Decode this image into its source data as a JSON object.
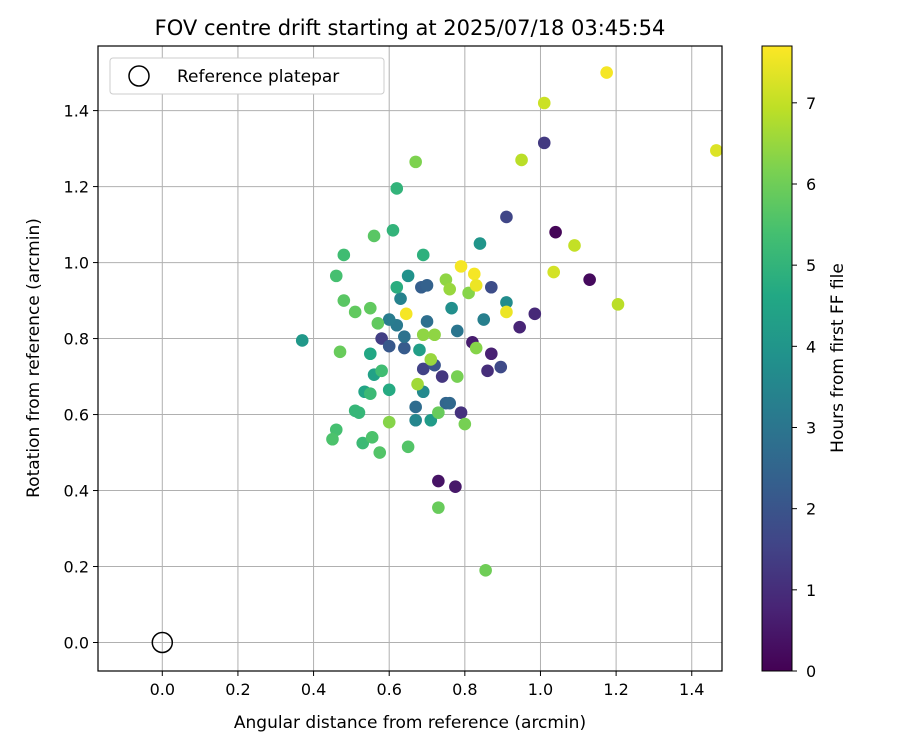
{
  "chart_data": {
    "type": "scatter",
    "title": "FOV centre drift starting at 2025/07/18 03:45:54",
    "xlabel": "Angular distance from reference (arcmin)",
    "ylabel": "Rotation from reference (arcmin)",
    "xlim": [
      -0.17,
      1.48
    ],
    "ylim": [
      -0.075,
      1.57
    ],
    "xticks": [
      "0.0",
      "0.2",
      "0.4",
      "0.6",
      "0.8",
      "1.0",
      "1.2",
      "1.4"
    ],
    "yticks": [
      "0.0",
      "0.2",
      "0.4",
      "0.6",
      "0.8",
      "1.0",
      "1.2",
      "1.4"
    ],
    "grid": true,
    "legend": {
      "placement": "top-left",
      "entries": [
        "Reference platepar"
      ]
    },
    "reference_point": {
      "x": 0.0,
      "y": 0.0
    },
    "colorbar": {
      "label": "Hours from first FF file",
      "range": [
        0,
        7.7
      ],
      "ticks": [
        "0",
        "1",
        "2",
        "3",
        "4",
        "5",
        "6",
        "7"
      ],
      "colormap": "viridis"
    },
    "series": [
      {
        "points": [
          [
            1.04,
            1.08,
            0.1
          ],
          [
            1.13,
            0.955,
            0.2
          ],
          [
            0.73,
            0.425,
            0.4
          ],
          [
            0.775,
            0.41,
            0.5
          ],
          [
            0.82,
            0.79,
            0.6
          ],
          [
            0.87,
            0.76,
            0.7
          ],
          [
            0.945,
            0.83,
            0.8
          ],
          [
            0.985,
            0.865,
            0.9
          ],
          [
            0.86,
            0.715,
            1.0
          ],
          [
            0.79,
            0.605,
            1.1
          ],
          [
            0.74,
            0.7,
            1.2
          ],
          [
            1.01,
            1.315,
            1.3
          ],
          [
            0.58,
            0.8,
            1.4
          ],
          [
            0.69,
            0.72,
            1.5
          ],
          [
            0.91,
            1.12,
            1.6
          ],
          [
            0.895,
            0.725,
            1.7
          ],
          [
            0.87,
            0.935,
            1.8
          ],
          [
            0.72,
            0.73,
            2.0
          ],
          [
            0.6,
            0.78,
            2.1
          ],
          [
            0.64,
            0.775,
            2.2
          ],
          [
            0.685,
            0.935,
            2.3
          ],
          [
            0.7,
            0.94,
            2.4
          ],
          [
            0.75,
            0.63,
            2.5
          ],
          [
            0.76,
            0.63,
            2.6
          ],
          [
            0.67,
            0.62,
            2.7
          ],
          [
            0.7,
            0.845,
            2.8
          ],
          [
            0.64,
            0.805,
            2.9
          ],
          [
            0.78,
            0.82,
            3.0
          ],
          [
            0.62,
            0.835,
            3.1
          ],
          [
            0.6,
            0.85,
            3.2
          ],
          [
            0.85,
            0.85,
            3.3
          ],
          [
            0.63,
            0.905,
            3.4
          ],
          [
            0.67,
            0.585,
            3.5
          ],
          [
            0.69,
            0.66,
            3.6
          ],
          [
            0.91,
            0.895,
            3.7
          ],
          [
            0.765,
            0.88,
            3.8
          ],
          [
            0.65,
            0.965,
            3.9
          ],
          [
            0.84,
            1.05,
            4.0
          ],
          [
            0.37,
            0.795,
            4.1
          ],
          [
            0.71,
            0.585,
            4.2
          ],
          [
            0.68,
            0.77,
            4.3
          ],
          [
            0.56,
            0.705,
            4.4
          ],
          [
            0.535,
            0.66,
            4.5
          ],
          [
            0.55,
            0.76,
            4.6
          ],
          [
            0.6,
            0.665,
            4.7
          ],
          [
            0.62,
            0.935,
            4.8
          ],
          [
            0.69,
            1.02,
            4.9
          ],
          [
            0.61,
            1.085,
            5.0
          ],
          [
            0.62,
            1.195,
            5.0
          ],
          [
            0.51,
            0.61,
            5.1
          ],
          [
            0.52,
            0.605,
            5.1
          ],
          [
            0.53,
            0.525,
            5.2
          ],
          [
            0.55,
            0.655,
            5.2
          ],
          [
            0.58,
            0.715,
            5.3
          ],
          [
            0.48,
            1.02,
            5.3
          ],
          [
            0.46,
            0.965,
            5.4
          ],
          [
            0.46,
            0.56,
            5.4
          ],
          [
            0.45,
            0.535,
            5.5
          ],
          [
            0.555,
            0.54,
            5.5
          ],
          [
            0.575,
            0.5,
            5.6
          ],
          [
            0.65,
            0.515,
            5.6
          ],
          [
            0.56,
            1.07,
            5.7
          ],
          [
            0.48,
            0.9,
            5.7
          ],
          [
            0.51,
            0.87,
            5.8
          ],
          [
            0.55,
            0.88,
            5.8
          ],
          [
            0.57,
            0.84,
            5.8
          ],
          [
            0.47,
            0.765,
            5.9
          ],
          [
            0.73,
            0.605,
            5.9
          ],
          [
            0.73,
            0.355,
            5.9
          ],
          [
            0.855,
            0.19,
            6.0
          ],
          [
            0.8,
            0.575,
            6.1
          ],
          [
            0.78,
            0.7,
            6.1
          ],
          [
            0.67,
            1.265,
            6.2
          ],
          [
            0.6,
            0.58,
            6.3
          ],
          [
            0.81,
            0.92,
            6.3
          ],
          [
            0.83,
            0.775,
            6.3
          ],
          [
            0.72,
            0.81,
            6.4
          ],
          [
            0.69,
            0.81,
            6.4
          ],
          [
            0.75,
            0.955,
            6.4
          ],
          [
            0.71,
            0.745,
            6.5
          ],
          [
            0.76,
            0.93,
            6.5
          ],
          [
            0.675,
            0.68,
            6.6
          ],
          [
            0.95,
            1.27,
            6.9
          ],
          [
            1.205,
            0.89,
            6.9
          ],
          [
            1.09,
            1.045,
            7.0
          ],
          [
            1.01,
            1.42,
            7.1
          ],
          [
            1.035,
            0.975,
            7.2
          ],
          [
            1.465,
            1.295,
            7.3
          ],
          [
            1.175,
            1.5,
            7.6
          ],
          [
            0.79,
            0.99,
            7.6
          ],
          [
            0.825,
            0.97,
            7.6
          ],
          [
            0.83,
            0.94,
            7.5
          ],
          [
            0.91,
            0.87,
            7.5
          ],
          [
            0.645,
            0.865,
            7.6
          ]
        ]
      }
    ]
  }
}
